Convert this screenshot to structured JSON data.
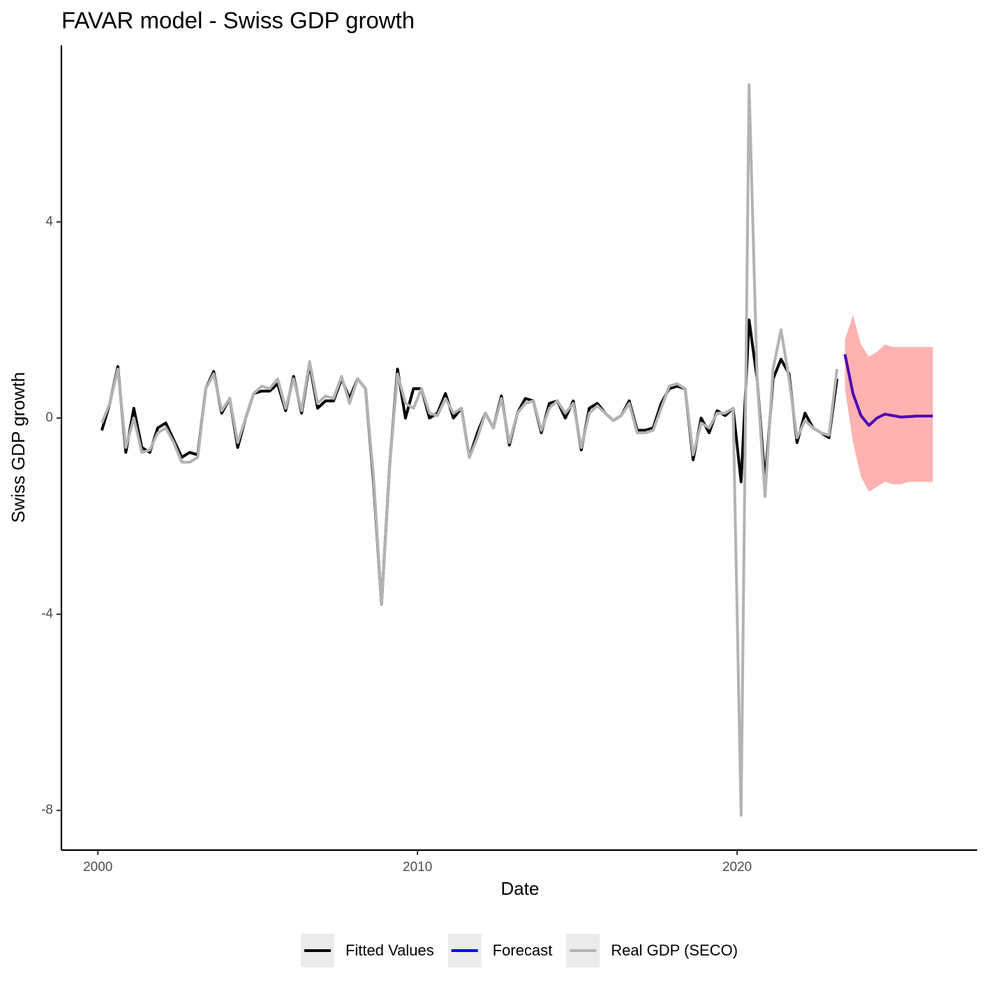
{
  "chart_data": {
    "type": "line",
    "title": "FAVAR model - Swiss GDP growth",
    "x_label": "Date",
    "y_label": "Swiss GDP growth",
    "xlim": [
      1998.86,
      2027.51
    ],
    "xticks": [
      2000,
      2010,
      2020
    ],
    "ylim": [
      -8.81,
      7.6
    ],
    "yticks": [
      -8,
      -4,
      0,
      4
    ],
    "grid": false,
    "legend_position": "bottom",
    "series": [
      {
        "name": "Fitted Values",
        "color": "#000000",
        "x": [
          2000.125,
          2000.375,
          2000.625,
          2000.875,
          2001.125,
          2001.375,
          2001.625,
          2001.875,
          2002.125,
          2002.375,
          2002.625,
          2002.875,
          2003.125,
          2003.375,
          2003.625,
          2003.875,
          2004.125,
          2004.375,
          2004.625,
          2004.875,
          2005.125,
          2005.375,
          2005.625,
          2005.875,
          2006.125,
          2006.375,
          2006.625,
          2006.875,
          2007.125,
          2007.375,
          2007.625,
          2007.875,
          2008.125,
          2008.375,
          2008.625,
          2008.875,
          2009.125,
          2009.375,
          2009.625,
          2009.875,
          2010.125,
          2010.375,
          2010.625,
          2010.875,
          2011.125,
          2011.375,
          2011.625,
          2011.875,
          2012.125,
          2012.375,
          2012.625,
          2012.875,
          2013.125,
          2013.375,
          2013.625,
          2013.875,
          2014.125,
          2014.375,
          2014.625,
          2014.875,
          2015.125,
          2015.375,
          2015.625,
          2015.875,
          2016.125,
          2016.375,
          2016.625,
          2016.875,
          2017.125,
          2017.375,
          2017.625,
          2017.875,
          2018.125,
          2018.375,
          2018.625,
          2018.875,
          2019.125,
          2019.375,
          2019.625,
          2019.875,
          2020.125,
          2020.375,
          2020.625,
          2020.875,
          2021.125,
          2021.375,
          2021.625,
          2021.875,
          2022.125,
          2022.375,
          2022.625,
          2022.875,
          2023.125
        ],
        "values": [
          -0.25,
          0.3,
          1.05,
          -0.7,
          0.2,
          -0.6,
          -0.7,
          -0.2,
          -0.1,
          -0.45,
          -0.8,
          -0.7,
          -0.75,
          0.6,
          0.95,
          0.1,
          0.4,
          -0.6,
          0.0,
          0.5,
          0.55,
          0.55,
          0.7,
          0.15,
          0.85,
          0.1,
          1.1,
          0.2,
          0.35,
          0.35,
          0.8,
          0.4,
          0.8,
          0.6,
          -1.3,
          -3.8,
          -1.0,
          1.0,
          0.0,
          0.6,
          0.6,
          0.0,
          0.1,
          0.5,
          0.0,
          0.2,
          -0.8,
          -0.3,
          0.1,
          -0.2,
          0.45,
          -0.55,
          0.1,
          0.4,
          0.35,
          -0.3,
          0.3,
          0.35,
          0.0,
          0.35,
          -0.65,
          0.2,
          0.3,
          0.1,
          -0.05,
          0.05,
          0.35,
          -0.25,
          -0.25,
          -0.2,
          0.3,
          0.6,
          0.65,
          0.6,
          -0.85,
          0.0,
          -0.3,
          0.15,
          0.05,
          0.2,
          -1.3,
          2.0,
          0.8,
          -1.3,
          0.8,
          1.2,
          0.9,
          -0.5,
          0.1,
          -0.2,
          -0.3,
          -0.4,
          0.8
        ]
      },
      {
        "name": "Forecast",
        "color": "#0000ff",
        "ribbon_color": "#ff0000",
        "ribbon_alpha": 0.3,
        "x": [
          2023.375,
          2023.625,
          2023.875,
          2024.125,
          2024.375,
          2024.625,
          2024.875,
          2025.125,
          2025.375,
          2025.625,
          2025.875,
          2026.125
        ],
        "values": [
          1.3,
          0.5,
          0.05,
          -0.15,
          0.0,
          0.08,
          0.05,
          0.02,
          0.03,
          0.04,
          0.04,
          0.04
        ],
        "lower": [
          0.6,
          -0.5,
          -1.2,
          -1.5,
          -1.4,
          -1.3,
          -1.35,
          -1.35,
          -1.3,
          -1.3,
          -1.3,
          -1.3
        ],
        "upper": [
          1.6,
          2.1,
          1.5,
          1.25,
          1.35,
          1.5,
          1.45,
          1.45,
          1.45,
          1.45,
          1.45,
          1.45
        ]
      },
      {
        "name": "Real GDP (SECO)",
        "color": "#b3b3b3",
        "x": [
          2000.125,
          2000.375,
          2000.625,
          2000.875,
          2001.125,
          2001.375,
          2001.625,
          2001.875,
          2002.125,
          2002.375,
          2002.625,
          2002.875,
          2003.125,
          2003.375,
          2003.625,
          2003.875,
          2004.125,
          2004.375,
          2004.625,
          2004.875,
          2005.125,
          2005.375,
          2005.625,
          2005.875,
          2006.125,
          2006.375,
          2006.625,
          2006.875,
          2007.125,
          2007.375,
          2007.625,
          2007.875,
          2008.125,
          2008.375,
          2008.625,
          2008.875,
          2009.125,
          2009.375,
          2009.625,
          2009.875,
          2010.125,
          2010.375,
          2010.625,
          2010.875,
          2011.125,
          2011.375,
          2011.625,
          2011.875,
          2012.125,
          2012.375,
          2012.625,
          2012.875,
          2013.125,
          2013.375,
          2013.625,
          2013.875,
          2014.125,
          2014.375,
          2014.625,
          2014.875,
          2015.125,
          2015.375,
          2015.625,
          2015.875,
          2016.125,
          2016.375,
          2016.625,
          2016.875,
          2017.125,
          2017.375,
          2017.625,
          2017.875,
          2018.125,
          2018.375,
          2018.625,
          2018.875,
          2019.125,
          2019.375,
          2019.625,
          2019.875,
          2020.125,
          2020.375,
          2020.625,
          2020.875,
          2021.125,
          2021.375,
          2021.625,
          2021.875,
          2022.125,
          2022.375,
          2022.625,
          2022.875,
          2023.125
        ],
        "values": [
          -0.1,
          0.3,
          1.0,
          -0.6,
          0.0,
          -0.7,
          -0.65,
          -0.3,
          -0.2,
          -0.5,
          -0.9,
          -0.9,
          -0.8,
          0.6,
          0.9,
          0.15,
          0.4,
          -0.5,
          0.0,
          0.5,
          0.65,
          0.6,
          0.8,
          0.2,
          0.8,
          0.15,
          1.15,
          0.3,
          0.45,
          0.4,
          0.85,
          0.3,
          0.8,
          0.6,
          -1.2,
          -3.8,
          -1.0,
          0.9,
          0.3,
          0.2,
          0.6,
          0.1,
          0.05,
          0.4,
          0.1,
          0.2,
          -0.8,
          -0.4,
          0.1,
          -0.2,
          0.4,
          -0.5,
          0.1,
          0.3,
          0.35,
          -0.25,
          0.2,
          0.35,
          0.1,
          0.3,
          -0.6,
          0.1,
          0.25,
          0.1,
          -0.05,
          0.05,
          0.3,
          -0.3,
          -0.3,
          -0.25,
          0.2,
          0.65,
          0.7,
          0.6,
          -0.75,
          -0.1,
          -0.2,
          0.1,
          0.1,
          0.2,
          -8.1,
          6.8,
          0.8,
          -1.6,
          1.0,
          1.8,
          0.8,
          -0.4,
          -0.05,
          -0.2,
          -0.3,
          -0.35,
          1.0
        ]
      }
    ]
  }
}
